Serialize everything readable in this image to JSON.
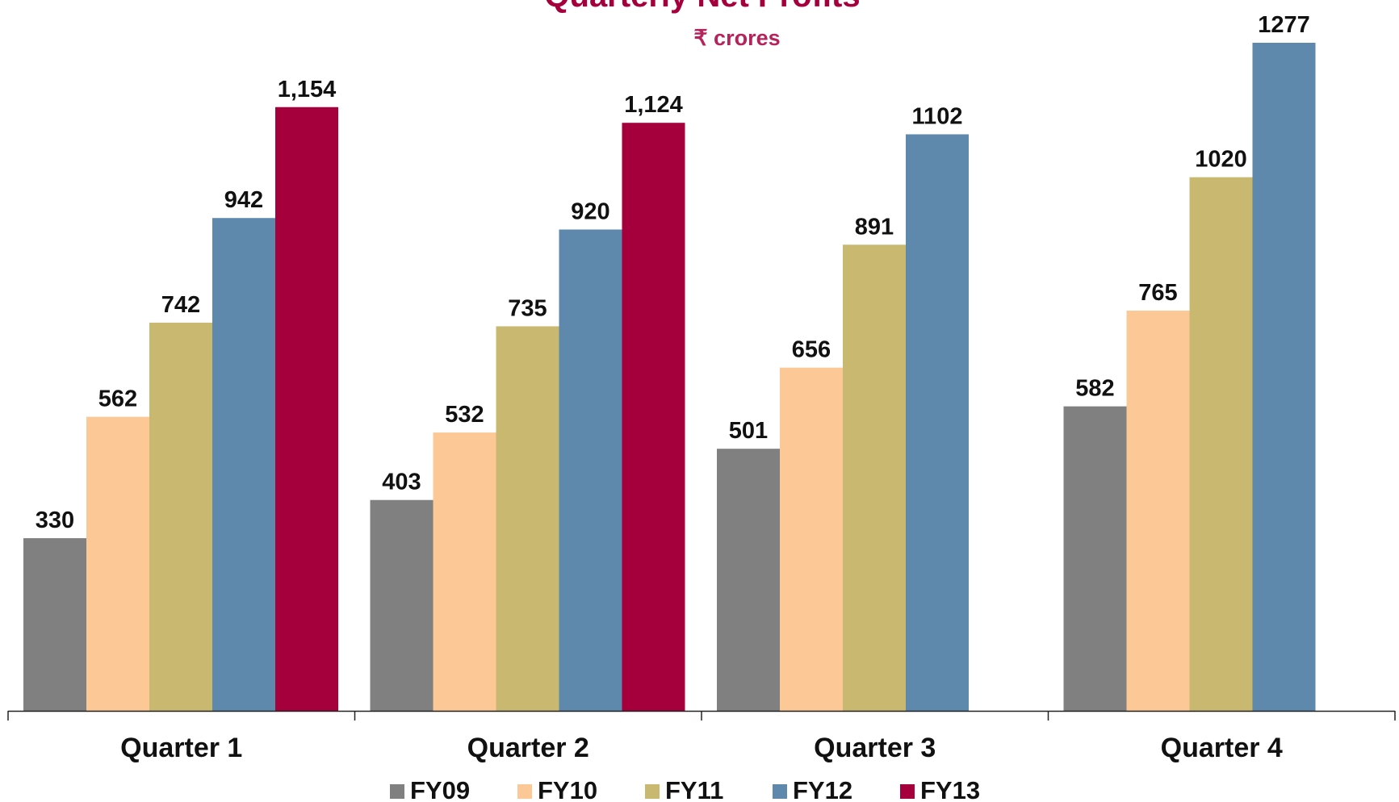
{
  "chart_data": {
    "type": "bar",
    "title": "Quarterly Net Profits",
    "subtitle": "₹ crores",
    "categories": [
      "Quarter 1",
      "Quarter 2",
      "Quarter 3",
      "Quarter 4"
    ],
    "series": [
      {
        "name": "FY09",
        "values": [
          330,
          403,
          501,
          582
        ],
        "labels": [
          "330",
          "403",
          "501",
          "582"
        ]
      },
      {
        "name": "FY10",
        "values": [
          562,
          532,
          656,
          765
        ],
        "labels": [
          "562",
          "532",
          "656",
          "765"
        ]
      },
      {
        "name": "FY11",
        "values": [
          742,
          735,
          891,
          1020
        ],
        "labels": [
          "742",
          "735",
          "891",
          "1020"
        ]
      },
      {
        "name": "FY12",
        "values": [
          942,
          920,
          1102,
          1277
        ],
        "labels": [
          "942",
          "920",
          "1102",
          "1277"
        ]
      },
      {
        "name": "FY13",
        "values": [
          1154,
          1124,
          null,
          null
        ],
        "labels": [
          "1,154",
          "1,124",
          "",
          ""
        ]
      }
    ],
    "ylim": [
      0,
      1277
    ],
    "grid": false,
    "legend_position": "bottom",
    "colors": {
      "FY09": "#808080",
      "FY10": "#FCC996",
      "FY11": "#C9B870",
      "FY12": "#5E88AC",
      "FY13": "#A5003C",
      "title": "#A5003C",
      "subtitle": "#B5235A"
    }
  }
}
